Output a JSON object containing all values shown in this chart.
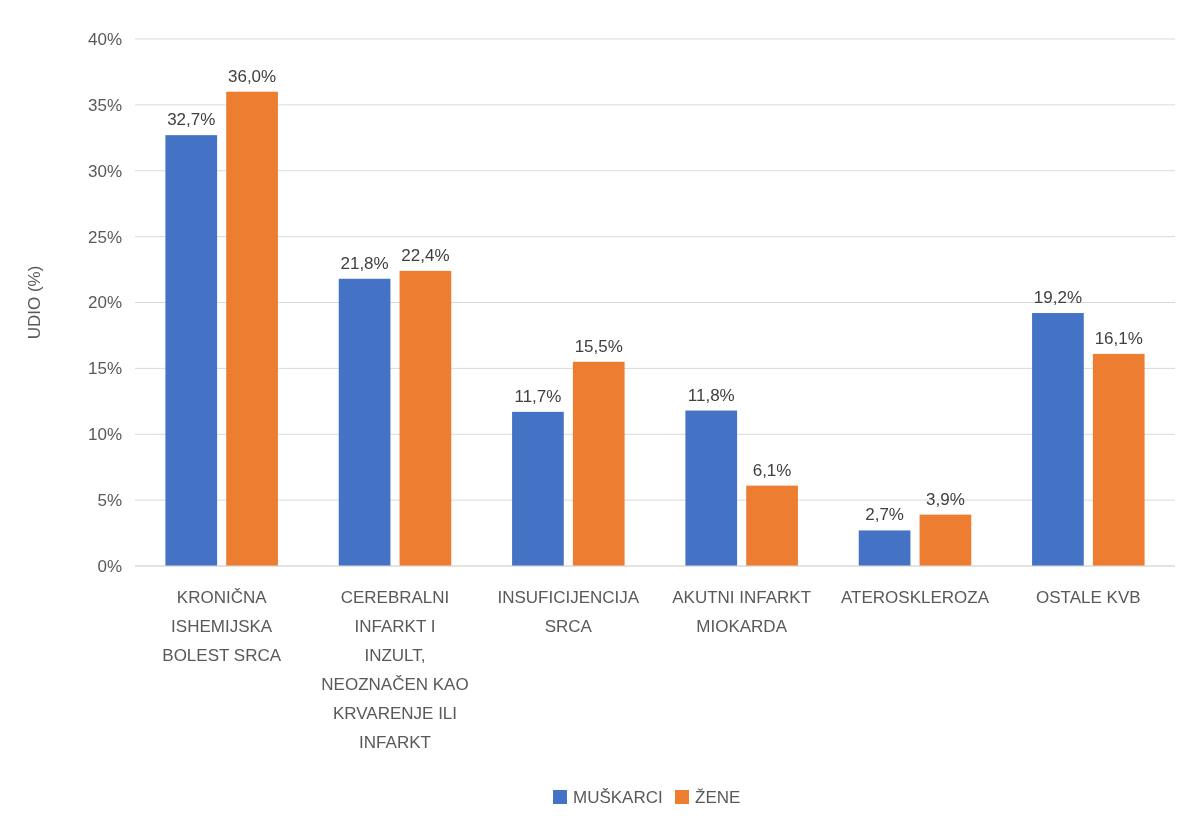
{
  "chart_data": {
    "type": "bar",
    "ylabel": "UDIO (%)",
    "categories": [
      "KRONIČNA ISHEMIJSKA BOLEST SRCA",
      "CEREBRALNI INFARKT I INZULT, NEOZNAČEN KAO KRVARENJE ILI INFARKT",
      "INSUFICIJENCIJA SRCA",
      "AKUTNI INFARKT MIOKARDA",
      "ATEROSKLEROZA",
      "OSTALE KVB"
    ],
    "series": [
      {
        "name": "MUŠKARCI",
        "color": "#4472c4",
        "values": [
          32.7,
          21.8,
          11.7,
          11.8,
          2.7,
          19.2
        ],
        "value_labels": [
          "32,7%",
          "21,8%",
          "11,7%",
          "11,8%",
          "2,7%",
          "19,2%"
        ]
      },
      {
        "name": "ŽENE",
        "color": "#ed7d31",
        "values": [
          36.0,
          22.4,
          15.5,
          6.1,
          3.9,
          16.1
        ],
        "value_labels": [
          "36,0%",
          "22,4%",
          "15,5%",
          "6,1%",
          "3,9%",
          "16,1%"
        ]
      }
    ],
    "ylim": [
      0,
      40
    ],
    "yticks": [
      {
        "value": 0,
        "label": "0%"
      },
      {
        "value": 5,
        "label": "5%"
      },
      {
        "value": 10,
        "label": "10%"
      },
      {
        "value": 15,
        "label": "15%"
      },
      {
        "value": 20,
        "label": "20%"
      },
      {
        "value": 25,
        "label": "25%"
      },
      {
        "value": 30,
        "label": "30%"
      },
      {
        "value": 35,
        "label": "35%"
      },
      {
        "value": 40,
        "label": "40%"
      }
    ],
    "grid": "y",
    "legend": "bottom"
  }
}
